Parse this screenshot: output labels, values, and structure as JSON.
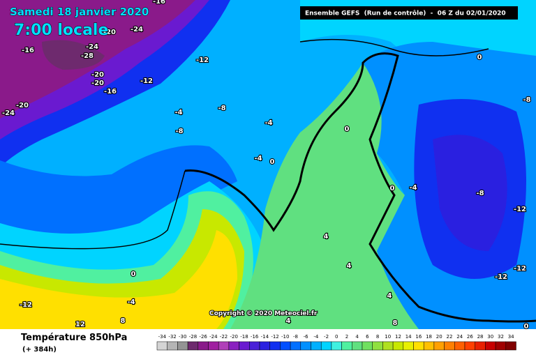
{
  "header": {
    "date": "Samedi 18 janvier 2020",
    "time": "7:00 locale",
    "run": "Ensemble GEFS  (Run de contrôle)  -  06 Z du 02/01/2020",
    "copyright": "Copyright © 2020 Meteociel.fr"
  },
  "legend": {
    "title": "Température 850hPa",
    "lead": "(+ 384h)",
    "scale": [
      -34,
      -32,
      -30,
      -28,
      -26,
      -24,
      -22,
      -20,
      -18,
      -16,
      -14,
      -12,
      -10,
      -8,
      -6,
      -4,
      -2,
      0,
      2,
      4,
      6,
      8,
      10,
      12,
      14,
      16,
      18,
      20,
      22,
      24,
      26,
      28,
      30,
      32,
      34
    ],
    "colors": [
      "#d4d4d4",
      "#b4b4b4",
      "#949494",
      "#6e2a6e",
      "#8a1a8a",
      "#a020a0",
      "#b040b8",
      "#8a20c0",
      "#6a1ad0",
      "#4a20d8",
      "#2a20e0",
      "#1030f0",
      "#0050ff",
      "#0070ff",
      "#0090ff",
      "#00b0ff",
      "#00d4ff",
      "#40f0e0",
      "#50f0a0",
      "#60e080",
      "#70e060",
      "#90e040",
      "#b0e020",
      "#c8e800",
      "#e8f000",
      "#ffe000",
      "#ffc000",
      "#ffa000",
      "#ff8000",
      "#ff6000",
      "#ff4000",
      "#e82000",
      "#c80000",
      "#a00000",
      "#800000"
    ]
  },
  "map_labels": [
    -16,
    -24,
    -20,
    -16,
    -24,
    -28,
    -12,
    -20,
    -20,
    -12,
    -16,
    -24,
    -20,
    -4,
    -8,
    -8,
    -4,
    0,
    -8,
    0,
    -4,
    0,
    0,
    -4,
    -8,
    -12,
    4,
    4,
    0,
    -12,
    -12,
    4,
    -12,
    -4,
    4,
    8,
    8,
    12,
    0
  ]
}
